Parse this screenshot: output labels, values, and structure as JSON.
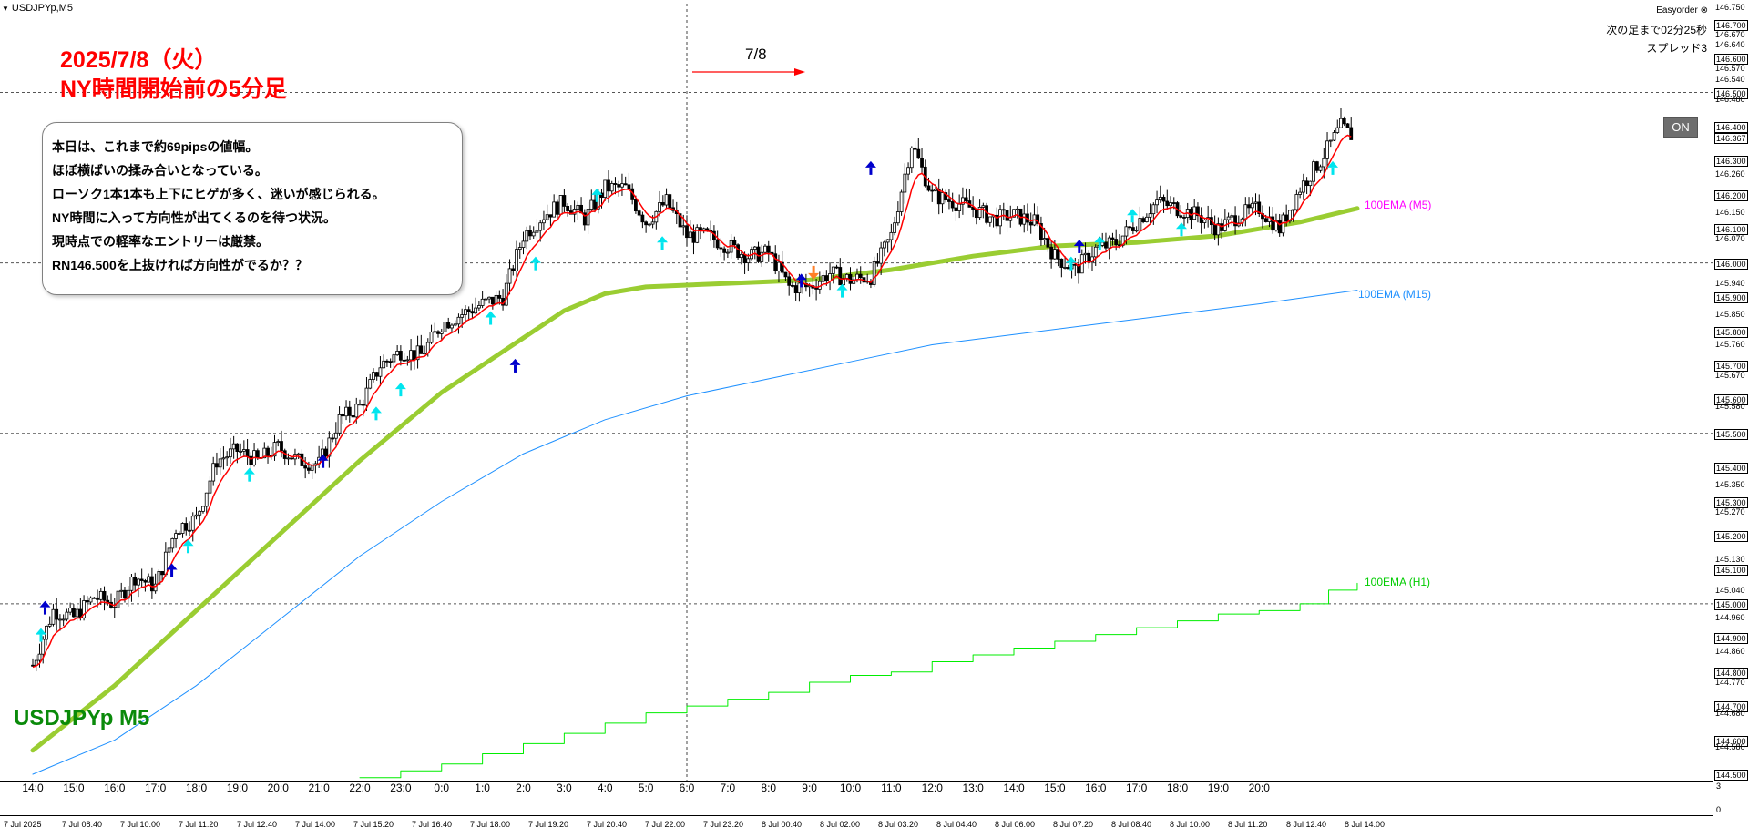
{
  "window": {
    "title": "USDJPYp,M5",
    "menu_icon": "triangle-down-icon"
  },
  "annotations": {
    "heading_line1": "2025/7/8（火）",
    "heading_line2": "NY時間開始前の5分足",
    "note_lines": [
      "本日は、これまで約69pipsの値幅。",
      "ほぼ横ばいの揉み合いとなっている。",
      "ローソク1本1本も上下にヒゲが多く、迷いが感じられる。",
      "NY時間に入って方向性が出てくるのを待つ状況。",
      "現時点での軽率なエントリーは厳禁。",
      "RN146.500を上抜ければ方向性がでるか？？"
    ],
    "symbol_label": "USDJPYp M5",
    "date_marker": "7/8"
  },
  "top_right": {
    "easyorder": "Easyorder",
    "easyorder_icon": "close-circle-icon",
    "next_bar": "次の足まで02分25秒",
    "spread": "スプレッド3",
    "on_button": "ON"
  },
  "ema_labels": {
    "m5": "100EMA (M5)",
    "m15": "100EMA (M15)",
    "h1": "100EMA (H1)"
  },
  "colors": {
    "ema_m5": "#9acd32",
    "ema_m15": "#1e90ff",
    "ema_h1": "#00ee00",
    "signal_line": "#ff0000",
    "arrow_up_blue": "#0000cc",
    "arrow_up_cyan": "#00e5ee",
    "arrow_down_orange": "#ff7f27",
    "label_m5": "#ff00ff",
    "label_m15": "#1e90ff",
    "label_h1": "#00cc00",
    "heading": "#ff0000",
    "symbol": "#008000"
  },
  "price_axis": {
    "labels": [
      "146.750",
      "146.700",
      "146.670",
      "146.640",
      "146.600",
      "146.570",
      "146.540",
      "146.500",
      "146.480",
      "146.400",
      "146.367",
      "146.300",
      "146.260",
      "146.200",
      "146.150",
      "146.100",
      "146.070",
      "146.000",
      "145.940",
      "145.900",
      "145.850",
      "145.800",
      "145.760",
      "145.700",
      "145.670",
      "145.600",
      "145.580",
      "145.500",
      "145.400",
      "145.350",
      "145.300",
      "145.270",
      "145.200",
      "145.130",
      "145.100",
      "145.040",
      "145.000",
      "144.960",
      "144.900",
      "144.860",
      "144.800",
      "144.770",
      "144.700",
      "144.680",
      "144.600",
      "144.580",
      "144.500"
    ],
    "boxed": [
      "146.700",
      "146.600",
      "146.500",
      "146.400",
      "146.300",
      "146.200",
      "146.100",
      "146.000",
      "145.900",
      "145.800",
      "145.700",
      "145.600",
      "145.500",
      "145.400",
      "145.300",
      "145.200",
      "145.100",
      "145.000",
      "144.900",
      "144.800",
      "144.700",
      "144.600",
      "144.500"
    ],
    "current": "146.367"
  },
  "sub_panel": {
    "top": "3",
    "bottom": "0"
  },
  "time_axis": [
    "7 Jul 2025",
    "7 Jul 08:40",
    "7 Jul 10:00",
    "7 Jul 11:20",
    "7 Jul 12:40",
    "7 Jul 14:00",
    "7 Jul 15:20",
    "7 Jul 16:40",
    "7 Jul 18:00",
    "7 Jul 19:20",
    "7 Jul 20:40",
    "7 Jul 22:00",
    "7 Jul 23:20",
    "8 Jul 00:40",
    "8 Jul 02:00",
    "8 Jul 03:20",
    "8 Jul 04:40",
    "8 Jul 06:00",
    "8 Jul 07:20",
    "8 Jul 08:40",
    "8 Jul 10:00",
    "8 Jul 11:20",
    "8 Jul 12:40",
    "8 Jul 14:00"
  ],
  "hour_labels": [
    "14:0",
    "15:0",
    "16:0",
    "17:0",
    "18:0",
    "19:0",
    "20:0",
    "21:0",
    "22:0",
    "23:0",
    "0:0",
    "1:0",
    "2:0",
    "3:0",
    "4:0",
    "5:0",
    "6:0",
    "7:0",
    "8:0",
    "9:0",
    "10:0",
    "11:0",
    "12:0",
    "13:0",
    "14:0",
    "15:0",
    "16:0",
    "17:0",
    "18:0",
    "19:0",
    "20:0"
  ],
  "chart_data": {
    "type": "line",
    "symbol": "USDJPYp",
    "timeframe": "M5",
    "ylim": [
      144.5,
      146.75
    ],
    "y_gridlines": [
      146.5,
      146.0,
      145.5,
      145.0
    ],
    "x_hour_labels": [
      "14:0",
      "15:0",
      "16:0",
      "17:0",
      "18:0",
      "19:0",
      "20:0",
      "21:0",
      "22:0",
      "23:0",
      "0:0",
      "1:0",
      "2:0",
      "3:0",
      "4:0",
      "5:0",
      "6:0",
      "7:0",
      "8:0",
      "9:0",
      "10:0",
      "11:0",
      "12:0",
      "13:0",
      "14:0",
      "15:0",
      "16:0",
      "17:0",
      "18:0",
      "19:0",
      "20:0"
    ],
    "price_path": [
      [
        14.0,
        144.82
      ],
      [
        14.5,
        144.98
      ],
      [
        15.0,
        144.96
      ],
      [
        15.5,
        145.02
      ],
      [
        16.0,
        145.0
      ],
      [
        16.5,
        145.08
      ],
      [
        17.0,
        145.05
      ],
      [
        17.5,
        145.22
      ],
      [
        18.0,
        145.25
      ],
      [
        18.5,
        145.42
      ],
      [
        19.0,
        145.45
      ],
      [
        19.5,
        145.42
      ],
      [
        20.0,
        145.46
      ],
      [
        20.5,
        145.42
      ],
      [
        21.0,
        145.41
      ],
      [
        21.5,
        145.54
      ],
      [
        22.0,
        145.58
      ],
      [
        22.5,
        145.7
      ],
      [
        23.0,
        145.74
      ],
      [
        23.5,
        145.73
      ],
      [
        24.0,
        145.82
      ],
      [
        24.5,
        145.85
      ],
      [
        25.0,
        145.88
      ],
      [
        25.5,
        145.9
      ],
      [
        26.0,
        146.08
      ],
      [
        26.5,
        146.14
      ],
      [
        27.0,
        146.18
      ],
      [
        27.5,
        146.13
      ],
      [
        28.0,
        146.22
      ],
      [
        28.5,
        146.22
      ],
      [
        29.0,
        146.12
      ],
      [
        29.5,
        146.18
      ],
      [
        30.0,
        146.08
      ],
      [
        30.5,
        146.08
      ],
      [
        31.0,
        146.05
      ],
      [
        31.5,
        146.02
      ],
      [
        32.0,
        146.03
      ],
      [
        32.5,
        145.93
      ],
      [
        33.0,
        145.93
      ],
      [
        33.5,
        145.97
      ],
      [
        34.0,
        145.95
      ],
      [
        34.5,
        145.96
      ],
      [
        35.0,
        146.08
      ],
      [
        35.5,
        146.35
      ],
      [
        36.0,
        146.2
      ],
      [
        36.5,
        146.18
      ],
      [
        37.0,
        146.16
      ],
      [
        37.5,
        146.13
      ],
      [
        38.0,
        146.14
      ],
      [
        38.5,
        146.12
      ],
      [
        39.0,
        146.02
      ],
      [
        39.5,
        145.98
      ],
      [
        40.0,
        146.04
      ],
      [
        40.5,
        146.06
      ],
      [
        41.0,
        146.12
      ],
      [
        41.5,
        146.18
      ],
      [
        42.0,
        146.16
      ],
      [
        42.5,
        146.14
      ],
      [
        43.0,
        146.1
      ],
      [
        43.5,
        146.14
      ],
      [
        44.0,
        146.16
      ],
      [
        44.5,
        146.1
      ],
      [
        45.0,
        146.22
      ],
      [
        45.5,
        146.3
      ],
      [
        46.0,
        146.4
      ],
      [
        46.3,
        146.37
      ]
    ],
    "series": [
      {
        "name": "100EMA (M5)",
        "points": [
          [
            14.0,
            144.57
          ],
          [
            16.0,
            144.76
          ],
          [
            18.0,
            144.98
          ],
          [
            20.0,
            145.2
          ],
          [
            22.0,
            145.42
          ],
          [
            24.0,
            145.62
          ],
          [
            26.0,
            145.78
          ],
          [
            27.0,
            145.86
          ],
          [
            28.0,
            145.91
          ],
          [
            29.0,
            145.93
          ],
          [
            31.0,
            145.94
          ],
          [
            33.0,
            145.95
          ],
          [
            35.0,
            145.98
          ],
          [
            37.0,
            146.02
          ],
          [
            39.0,
            146.05
          ],
          [
            41.0,
            146.06
          ],
          [
            43.0,
            146.08
          ],
          [
            45.0,
            146.12
          ],
          [
            46.4,
            146.16
          ]
        ]
      },
      {
        "name": "100EMA (M15)",
        "points": [
          [
            14.0,
            144.5
          ],
          [
            16.0,
            144.6
          ],
          [
            18.0,
            144.76
          ],
          [
            20.0,
            144.95
          ],
          [
            22.0,
            145.14
          ],
          [
            24.0,
            145.3
          ],
          [
            26.0,
            145.44
          ],
          [
            28.0,
            145.54
          ],
          [
            30.0,
            145.61
          ],
          [
            32.0,
            145.66
          ],
          [
            34.0,
            145.71
          ],
          [
            36.0,
            145.76
          ],
          [
            38.0,
            145.79
          ],
          [
            40.0,
            145.82
          ],
          [
            42.0,
            145.85
          ],
          [
            44.0,
            145.88
          ],
          [
            46.4,
            145.92
          ]
        ]
      },
      {
        "name": "100EMA (H1)",
        "points": [
          [
            22.0,
            144.49
          ],
          [
            23.0,
            144.51
          ],
          [
            24.0,
            144.53
          ],
          [
            25.0,
            144.56
          ],
          [
            26.0,
            144.59
          ],
          [
            27.0,
            144.62
          ],
          [
            28.0,
            144.65
          ],
          [
            29.0,
            144.68
          ],
          [
            30.0,
            144.7
          ],
          [
            31.0,
            144.72
          ],
          [
            32.0,
            144.74
          ],
          [
            33.0,
            144.77
          ],
          [
            34.0,
            144.79
          ],
          [
            35.0,
            144.8
          ],
          [
            36.0,
            144.83
          ],
          [
            37.0,
            144.85
          ],
          [
            38.0,
            144.87
          ],
          [
            39.0,
            144.89
          ],
          [
            40.0,
            144.91
          ],
          [
            41.0,
            144.93
          ],
          [
            42.0,
            144.95
          ],
          [
            43.0,
            144.97
          ],
          [
            44.0,
            144.98
          ],
          [
            45.0,
            145.0
          ],
          [
            45.7,
            145.04
          ],
          [
            46.4,
            145.06
          ]
        ]
      }
    ],
    "signals_up_blue": [
      [
        14.3,
        144.99
      ],
      [
        17.4,
        145.1
      ],
      [
        21.1,
        145.42
      ],
      [
        25.8,
        145.7
      ],
      [
        32.8,
        145.95
      ],
      [
        34.5,
        146.28
      ],
      [
        39.6,
        146.05
      ]
    ],
    "signals_up_cyan": [
      [
        14.2,
        144.91
      ],
      [
        17.8,
        145.17
      ],
      [
        19.3,
        145.38
      ],
      [
        22.4,
        145.56
      ],
      [
        23.0,
        145.63
      ],
      [
        25.2,
        145.84
      ],
      [
        26.3,
        146.0
      ],
      [
        27.8,
        146.2
      ],
      [
        29.4,
        146.06
      ],
      [
        33.8,
        145.92
      ],
      [
        39.4,
        146.0
      ],
      [
        40.1,
        146.06
      ],
      [
        40.9,
        146.14
      ],
      [
        42.1,
        146.1
      ],
      [
        45.8,
        146.28
      ]
    ],
    "signals_down_orange": [
      [
        33.1,
        145.97
      ]
    ],
    "vertical_marker_hour": 30.0
  }
}
